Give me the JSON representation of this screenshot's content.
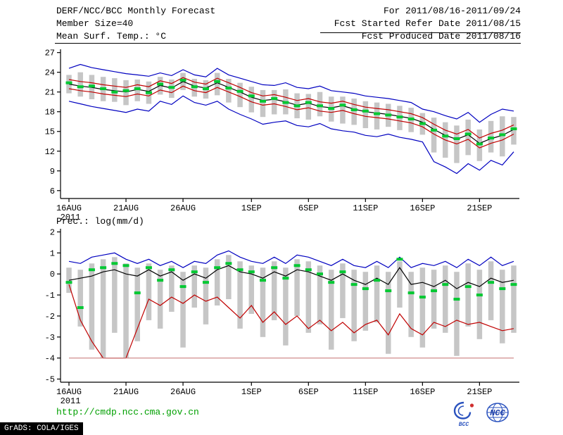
{
  "header": {
    "title": "DERF/NCC/BCC Monthly Forecast",
    "member_size": "Member Size=40",
    "for_range": "For 2011/08/16-2011/09/24",
    "fcst_started": "Fcst Started Refer Date 2011/08/15",
    "fcst_produced": "Fcst Produced Date 2011/08/16"
  },
  "footer": {
    "url": "http://cmdp.ncc.cma.gov.cn",
    "url_color": "#00a000",
    "bcc_label": "BCC",
    "ncc_label": "NCC",
    "credit": "GrADS: COLA/IGES"
  },
  "chart_data": [
    {
      "type": "line",
      "name": "mean-surface-temperature",
      "title": "Mean Surf. Temp.: °C",
      "xlabel": "",
      "ylabel": "°C",
      "ylim": [
        4.8,
        27.5
      ],
      "yticks": [
        6,
        9,
        12,
        15,
        18,
        21,
        24,
        27
      ],
      "grid": false,
      "legend": "none",
      "x_year": "2011",
      "x_ticks": [
        {
          "day": 0,
          "label": "16AUG"
        },
        {
          "day": 5,
          "label": "21AUG"
        },
        {
          "day": 10,
          "label": "26AUG"
        },
        {
          "day": 16,
          "label": "1SEP"
        },
        {
          "day": 21,
          "label": "6SEP"
        },
        {
          "day": 26,
          "label": "11SEP"
        },
        {
          "day": 31,
          "label": "16SEP"
        },
        {
          "day": 36,
          "label": "21SEP"
        }
      ],
      "bars": {
        "name": "ensemble-spread",
        "color": "#c6c6c6",
        "low": [
          20.8,
          20.3,
          19.9,
          19.6,
          19.5,
          19.0,
          19.6,
          19.2,
          20.6,
          20.1,
          21.3,
          20.3,
          20.0,
          20.5,
          19.4,
          18.7,
          17.9,
          17.2,
          17.6,
          17.6,
          17.0,
          16.8,
          17.3,
          16.5,
          16.2,
          16.0,
          15.5,
          15.3,
          15.7,
          15.2,
          14.9,
          14.5,
          11.8,
          11.0,
          10.2,
          11.4,
          10.5,
          11.8,
          11.2,
          13.0
        ],
        "high": [
          23.6,
          24.0,
          23.6,
          23.3,
          23.1,
          22.8,
          22.9,
          22.6,
          23.3,
          22.9,
          23.9,
          23.0,
          22.8,
          23.9,
          23.0,
          22.4,
          21.8,
          21.3,
          21.3,
          21.4,
          20.8,
          20.7,
          21.0,
          20.3,
          20.3,
          20.0,
          19.6,
          19.4,
          19.2,
          18.9,
          18.6,
          17.8,
          17.1,
          16.4,
          15.9,
          16.8,
          15.3,
          16.6,
          17.3,
          17.2
        ]
      },
      "series": [
        {
          "name": "ensemble-max",
          "color": "#0000c0",
          "values": [
            24.6,
            25.2,
            24.7,
            24.4,
            24.1,
            23.8,
            23.6,
            23.4,
            23.9,
            23.5,
            24.4,
            23.6,
            23.3,
            24.6,
            23.6,
            23.1,
            22.6,
            22.1,
            22.0,
            22.4,
            21.7,
            21.5,
            21.9,
            21.2,
            21.0,
            20.8,
            20.4,
            20.2,
            20.0,
            19.7,
            19.4,
            18.4,
            18.0,
            17.4,
            16.9,
            17.9,
            16.4,
            17.6,
            18.4,
            18.1
          ]
        },
        {
          "name": "upper-quartile",
          "color": "#c00000",
          "values": [
            22.9,
            22.6,
            22.4,
            22.1,
            21.9,
            21.7,
            22.1,
            21.8,
            22.7,
            22.3,
            23.2,
            22.5,
            22.2,
            23.1,
            22.4,
            21.7,
            20.9,
            20.4,
            20.6,
            20.2,
            19.7,
            20.0,
            19.5,
            19.3,
            19.6,
            19.1,
            18.7,
            18.5,
            18.3,
            18.0,
            17.7,
            17.1,
            16.1,
            15.2,
            14.6,
            15.3,
            14.0,
            14.7,
            15.2,
            16.0
          ]
        },
        {
          "name": "ensemble-mean",
          "color": "#000000",
          "values": [
            22.2,
            21.9,
            21.7,
            21.4,
            21.2,
            21.0,
            21.4,
            21.1,
            22.0,
            21.6,
            22.6,
            21.9,
            21.6,
            22.4,
            21.7,
            21.0,
            20.2,
            19.7,
            19.9,
            19.5,
            19.0,
            19.3,
            18.8,
            18.6,
            18.9,
            18.4,
            18.0,
            17.8,
            17.6,
            17.3,
            17.0,
            16.4,
            15.3,
            14.4,
            13.8,
            14.5,
            13.2,
            13.9,
            14.4,
            15.3
          ]
        },
        {
          "name": "lower-quartile",
          "color": "#c00000",
          "values": [
            21.5,
            21.2,
            21.0,
            20.7,
            20.5,
            20.3,
            20.7,
            20.4,
            21.3,
            20.9,
            21.9,
            21.2,
            20.9,
            21.7,
            21.0,
            20.3,
            19.5,
            19.0,
            19.2,
            18.8,
            18.3,
            18.6,
            18.1,
            17.9,
            18.2,
            17.7,
            17.3,
            17.1,
            16.9,
            16.6,
            16.3,
            15.7,
            14.6,
            13.7,
            13.1,
            13.8,
            12.5,
            13.2,
            13.7,
            14.6
          ]
        },
        {
          "name": "ensemble-min",
          "color": "#0000c0",
          "values": [
            19.6,
            19.2,
            18.8,
            18.5,
            18.2,
            17.9,
            18.4,
            18.1,
            19.6,
            19.1,
            20.4,
            19.4,
            19.0,
            19.6,
            18.4,
            17.6,
            16.9,
            16.1,
            16.4,
            16.6,
            15.9,
            15.7,
            16.2,
            15.4,
            15.1,
            14.9,
            14.4,
            14.2,
            14.6,
            14.1,
            13.8,
            13.4,
            10.4,
            9.6,
            8.6,
            10.1,
            9.1,
            10.6,
            9.9,
            11.9
          ]
        }
      ],
      "markers": {
        "name": "ensemble-median-dashes",
        "color": "#00c832",
        "values": [
          22.4,
          21.8,
          21.9,
          21.5,
          21.0,
          21.2,
          21.5,
          20.9,
          22.2,
          21.7,
          22.8,
          21.8,
          21.5,
          22.6,
          21.6,
          21.1,
          20.4,
          19.6,
          20.0,
          19.4,
          18.9,
          19.4,
          18.9,
          18.5,
          19.0,
          18.3,
          18.1,
          17.7,
          17.5,
          17.2,
          16.9,
          16.2,
          15.2,
          14.3,
          13.9,
          14.6,
          13.1,
          14.0,
          14.5,
          15.4
        ]
      }
    },
    {
      "type": "line",
      "name": "precipitation",
      "title": "Prec.: log(mm/d)",
      "xlabel": "",
      "ylabel": "log(mm/d)",
      "ylim": [
        -5.15,
        2.15
      ],
      "yticks": [
        -5,
        -4,
        -3,
        -2,
        -1,
        0,
        1,
        2
      ],
      "grid": false,
      "legend": "none",
      "x_year": "2011",
      "x_ticks": [
        {
          "day": 0,
          "label": "16AUG"
        },
        {
          "day": 5,
          "label": "21AUG"
        },
        {
          "day": 10,
          "label": "26AUG"
        },
        {
          "day": 16,
          "label": "1SEP"
        },
        {
          "day": 21,
          "label": "6SEP"
        },
        {
          "day": 26,
          "label": "11SEP"
        },
        {
          "day": 31,
          "label": "16SEP"
        },
        {
          "day": 36,
          "label": "21SEP"
        }
      ],
      "bars": {
        "name": "ensemble-spread",
        "color": "#c6c6c6",
        "low": [
          -0.9,
          -2.5,
          -3.6,
          -4.0,
          -2.8,
          -4.0,
          -3.2,
          -2.2,
          -2.6,
          -1.8,
          -3.5,
          -1.6,
          -2.4,
          -1.5,
          -1.2,
          -2.6,
          -1.9,
          -3.0,
          -2.2,
          -3.4,
          -2.0,
          -2.8,
          -2.4,
          -3.6,
          -2.1,
          -3.2,
          -2.7,
          -2.3,
          -3.8,
          -1.6,
          -3.0,
          -3.5,
          -2.6,
          -2.8,
          -3.9,
          -2.5,
          -3.1,
          -2.2,
          -3.3,
          -2.8
        ],
        "high": [
          0.3,
          0.2,
          0.5,
          0.7,
          0.8,
          0.5,
          0.3,
          0.5,
          0.2,
          0.4,
          0.1,
          0.4,
          0.3,
          0.7,
          0.9,
          0.6,
          0.4,
          0.3,
          0.6,
          0.3,
          0.7,
          0.6,
          0.4,
          0.2,
          0.5,
          0.2,
          0.1,
          0.4,
          0.1,
          0.6,
          0.1,
          0.3,
          0.2,
          0.4,
          0.1,
          0.5,
          0.2,
          0.6,
          0.2,
          0.4
        ]
      },
      "series": [
        {
          "name": "ensemble-max",
          "color": "#0000c0",
          "values": [
            0.6,
            0.5,
            0.8,
            0.9,
            1.0,
            0.7,
            0.5,
            0.7,
            0.4,
            0.6,
            0.3,
            0.6,
            0.5,
            0.9,
            1.1,
            0.8,
            0.6,
            0.5,
            0.8,
            0.5,
            0.9,
            0.8,
            0.6,
            0.4,
            0.7,
            0.4,
            0.3,
            0.6,
            0.3,
            0.8,
            0.3,
            0.5,
            0.4,
            0.6,
            0.3,
            0.7,
            0.4,
            0.8,
            0.4,
            0.6
          ]
        },
        {
          "name": "ensemble-mean",
          "color": "#000000",
          "values": [
            -0.3,
            -0.2,
            -0.1,
            0.1,
            0.2,
            0.0,
            -0.1,
            0.2,
            -0.1,
            0.1,
            -0.3,
            0.0,
            -0.2,
            0.2,
            0.4,
            0.1,
            0.0,
            -0.2,
            0.1,
            -0.1,
            0.2,
            0.1,
            -0.1,
            -0.3,
            0.0,
            -0.3,
            -0.5,
            -0.2,
            -0.5,
            0.3,
            -0.5,
            -0.4,
            -0.6,
            -0.3,
            -0.7,
            -0.4,
            -0.6,
            -0.2,
            -0.4,
            -0.3
          ]
        },
        {
          "name": "ensemble-min",
          "color": "#c00000",
          "values": [
            -0.5,
            -2.2,
            -3.2,
            -4.0,
            -4.0,
            -4.0,
            -2.6,
            -1.2,
            -1.5,
            -1.1,
            -1.4,
            -1.0,
            -1.3,
            -1.1,
            -1.6,
            -2.1,
            -1.5,
            -2.3,
            -1.8,
            -2.4,
            -2.0,
            -2.6,
            -2.2,
            -2.7,
            -2.3,
            -2.8,
            -2.4,
            -2.2,
            -2.9,
            -1.9,
            -2.6,
            -2.9,
            -2.3,
            -2.5,
            -2.2,
            -2.4,
            -2.3,
            -2.5,
            -2.7,
            -2.6
          ]
        },
        {
          "name": "trace-floor",
          "color": "#cc8080",
          "values": [
            -4,
            -4,
            -4,
            -4,
            -4,
            -4,
            -4,
            -4,
            -4,
            -4,
            -4,
            -4,
            -4,
            -4,
            -4,
            -4,
            -4,
            -4,
            -4,
            -4,
            -4,
            -4,
            -4,
            -4,
            -4,
            -4,
            -4,
            -4,
            -4,
            -4,
            -4,
            -4,
            -4,
            -4,
            -4,
            -4,
            -4,
            -4,
            -4,
            -4
          ]
        }
      ],
      "markers": {
        "name": "ensemble-median-dashes",
        "color": "#00c832",
        "values": [
          -0.4,
          -1.6,
          0.2,
          0.3,
          0.5,
          0.4,
          -0.9,
          0.3,
          -0.3,
          0.2,
          -0.6,
          0.1,
          -0.4,
          0.3,
          0.5,
          0.2,
          0.1,
          -0.3,
          0.3,
          -0.2,
          0.4,
          0.2,
          0.0,
          -0.4,
          0.1,
          -0.5,
          -0.7,
          -0.3,
          -0.8,
          0.7,
          -0.9,
          -1.1,
          -0.8,
          -0.5,
          -1.2,
          -0.6,
          -1.0,
          -0.4,
          -0.7,
          -0.5
        ]
      }
    }
  ]
}
